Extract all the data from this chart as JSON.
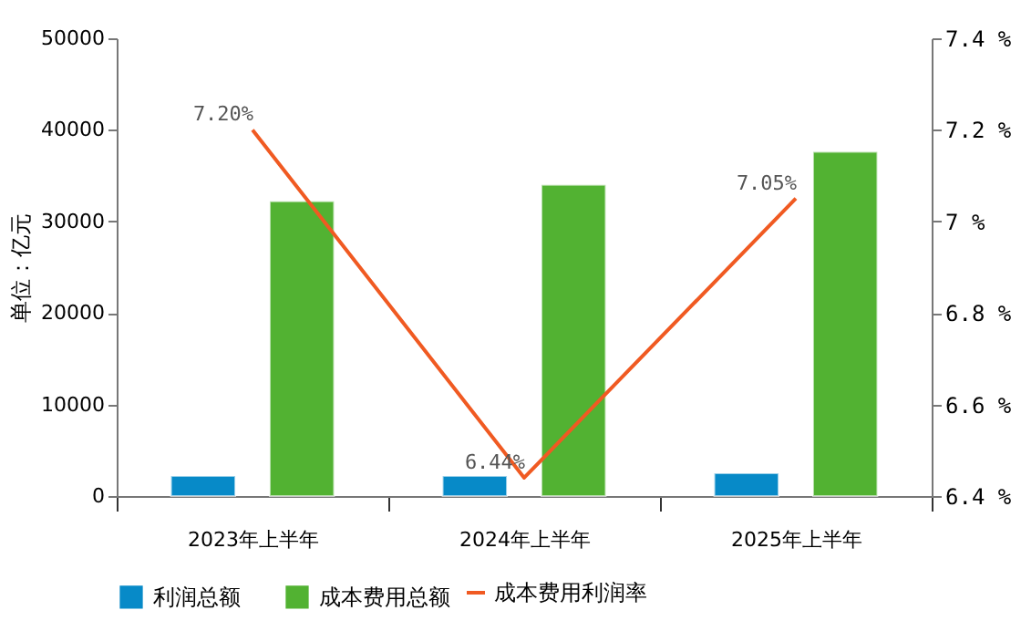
{
  "chart_data": {
    "type": "bar",
    "ylabel": "单位：亿元",
    "categories": [
      "2023年上半年",
      "2024年上半年",
      "2025年上半年"
    ],
    "series": [
      {
        "name": "利润总额",
        "color": "#078ac8",
        "values": [
          2200,
          2200,
          2500
        ]
      },
      {
        "name": "成本费用总额",
        "color": "#52b232",
        "values": [
          32200,
          34000,
          37600
        ]
      },
      {
        "name": "成本费用利润率",
        "type": "line",
        "axis": "y2",
        "color": "#f05a22",
        "values": [
          7.2,
          6.44,
          7.05
        ],
        "value_labels": [
          "7.20%",
          "6.44%",
          "7.05%"
        ]
      }
    ],
    "ylim": [
      0,
      50000
    ],
    "yticks": [
      0,
      10000,
      20000,
      30000,
      40000,
      50000
    ],
    "y2lim": [
      6.4,
      7.4
    ],
    "y2ticks": [
      {
        "value": 6.4,
        "label": "6.4 %"
      },
      {
        "value": 6.6,
        "label": "6.6 %"
      },
      {
        "value": 6.8,
        "label": "6.8 %"
      },
      {
        "value": 7.0,
        "label": "7 %"
      },
      {
        "value": 7.2,
        "label": "7.2 %"
      },
      {
        "value": 7.4,
        "label": "7.4 %"
      }
    ],
    "grid": false,
    "legend": "bottom"
  }
}
